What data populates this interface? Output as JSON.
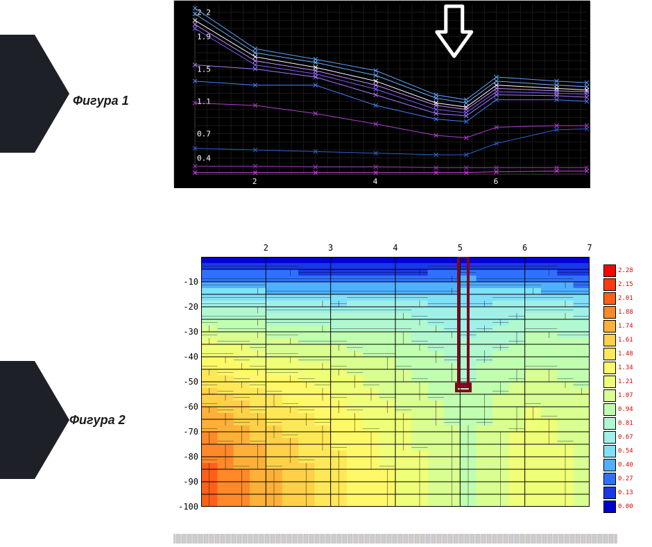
{
  "labels": {
    "fig1": "Фигура 1",
    "fig2": "Фигура 2"
  },
  "fig1": {
    "type": "line",
    "background_color": "#000000",
    "grid_color": "#1a1a1a",
    "axis_color": "#404040",
    "text_color": "#ffffff",
    "tick_fontsize": 11,
    "xlim": [
      1,
      7.5
    ],
    "ylim": [
      0.2,
      2.3
    ],
    "xticks": [
      2,
      4,
      6
    ],
    "yticks": [
      0.4,
      0.7,
      1.1,
      1.5,
      1.9,
      2.2
    ],
    "arrow": {
      "x": 5.3,
      "color": "#ffffff",
      "stroke_width": 5
    },
    "series": [
      {
        "color": "#60a0ff",
        "width": 1,
        "pts": [
          [
            1,
            2.25
          ],
          [
            2,
            1.75
          ],
          [
            3,
            1.62
          ],
          [
            4,
            1.48
          ],
          [
            5,
            1.18
          ],
          [
            5.5,
            1.12
          ],
          [
            6,
            1.4
          ],
          [
            7,
            1.35
          ],
          [
            7.5,
            1.33
          ]
        ]
      },
      {
        "color": "#70b0ff",
        "width": 1,
        "pts": [
          [
            1,
            2.18
          ],
          [
            2,
            1.7
          ],
          [
            3,
            1.58
          ],
          [
            4,
            1.42
          ],
          [
            5,
            1.14
          ],
          [
            5.5,
            1.08
          ],
          [
            6,
            1.35
          ],
          [
            7,
            1.3
          ],
          [
            7.5,
            1.28
          ]
        ]
      },
      {
        "color": "#ffffff",
        "width": 1,
        "pts": [
          [
            1,
            2.1
          ],
          [
            2,
            1.65
          ],
          [
            3,
            1.52
          ],
          [
            4,
            1.35
          ],
          [
            5,
            1.08
          ],
          [
            5.5,
            1.03
          ],
          [
            6,
            1.3
          ],
          [
            7,
            1.26
          ],
          [
            7.5,
            1.24
          ]
        ]
      },
      {
        "color": "#c890ff",
        "width": 1,
        "pts": [
          [
            1,
            2.05
          ],
          [
            2,
            1.6
          ],
          [
            3,
            1.48
          ],
          [
            4,
            1.3
          ],
          [
            5,
            1.05
          ],
          [
            5.5,
            1.0
          ],
          [
            6,
            1.26
          ],
          [
            7,
            1.23
          ],
          [
            7.5,
            1.22
          ]
        ]
      },
      {
        "color": "#8060ff",
        "width": 1,
        "pts": [
          [
            1,
            2.0
          ],
          [
            2,
            1.55
          ],
          [
            3,
            1.44
          ],
          [
            4,
            1.25
          ],
          [
            5,
            1.0
          ],
          [
            5.5,
            0.96
          ],
          [
            6,
            1.22
          ],
          [
            7,
            1.2
          ],
          [
            7.5,
            1.19
          ]
        ]
      },
      {
        "color": "#a878ff",
        "width": 1,
        "pts": [
          [
            1,
            1.55
          ],
          [
            2,
            1.5
          ],
          [
            3,
            1.4
          ],
          [
            4,
            1.18
          ],
          [
            5,
            0.95
          ],
          [
            5.5,
            0.92
          ],
          [
            6,
            1.18
          ],
          [
            7,
            1.17
          ],
          [
            7.5,
            1.15
          ]
        ]
      },
      {
        "color": "#4080ff",
        "width": 1,
        "pts": [
          [
            1,
            1.35
          ],
          [
            2,
            1.3
          ],
          [
            3,
            1.3
          ],
          [
            4,
            1.05
          ],
          [
            5,
            0.88
          ],
          [
            5.5,
            0.85
          ],
          [
            6,
            1.12
          ],
          [
            7,
            1.12
          ],
          [
            7.5,
            1.1
          ]
        ]
      },
      {
        "color": "#b040d0",
        "width": 1,
        "pts": [
          [
            1,
            1.08
          ],
          [
            2,
            1.05
          ],
          [
            3,
            0.95
          ],
          [
            4,
            0.82
          ],
          [
            5,
            0.68
          ],
          [
            5.5,
            0.65
          ],
          [
            6,
            0.78
          ],
          [
            7,
            0.8
          ],
          [
            7.5,
            0.8
          ]
        ]
      },
      {
        "color": "#3060d0",
        "width": 1,
        "pts": [
          [
            1,
            0.52
          ],
          [
            2,
            0.5
          ],
          [
            3,
            0.48
          ],
          [
            4,
            0.46
          ],
          [
            5,
            0.44
          ],
          [
            5.5,
            0.44
          ],
          [
            6,
            0.58
          ],
          [
            7,
            0.75
          ],
          [
            7.5,
            0.76
          ]
        ]
      },
      {
        "color": "#a030c0",
        "width": 1,
        "pts": [
          [
            1,
            0.3
          ],
          [
            2,
            0.3
          ],
          [
            3,
            0.29
          ],
          [
            4,
            0.29
          ],
          [
            5,
            0.28
          ],
          [
            5.5,
            0.28
          ],
          [
            6,
            0.28
          ],
          [
            7,
            0.28
          ],
          [
            7.5,
            0.28
          ]
        ]
      },
      {
        "color": "#d040e0",
        "width": 1,
        "pts": [
          [
            1,
            0.22
          ],
          [
            2,
            0.22
          ],
          [
            3,
            0.22
          ],
          [
            4,
            0.22
          ],
          [
            5,
            0.22
          ],
          [
            5.5,
            0.22
          ],
          [
            6,
            0.23
          ],
          [
            7,
            0.24
          ],
          [
            7.5,
            0.24
          ]
        ]
      }
    ]
  },
  "fig2": {
    "type": "heatmap",
    "background_color": "#ffffff",
    "grid_color": "#000000",
    "text_color": "#000000",
    "tick_fontsize": 12,
    "xlim": [
      1,
      7
    ],
    "ylim": [
      -100,
      0
    ],
    "xticks": [
      2,
      3,
      4,
      5,
      6,
      7
    ],
    "yticks": [
      -10,
      -20,
      -30,
      -40,
      -50,
      -60,
      -70,
      -80,
      -90,
      -100
    ],
    "y_gridlines": [
      -5,
      -10,
      -15,
      -20,
      -25,
      -30,
      -35,
      -40,
      -45,
      -50,
      -55,
      -60,
      -65,
      -70,
      -75,
      -80,
      -85,
      -90,
      -95,
      -100
    ],
    "marker": {
      "x": 5.05,
      "y_top": 0,
      "y_bot": -52,
      "color": "#7a0820",
      "stroke_width": 4
    },
    "legend": {
      "stops": [
        {
          "v": "2.28",
          "c": "#ff0000"
        },
        {
          "v": "2.15",
          "c": "#ff3810"
        },
        {
          "v": "2.01",
          "c": "#ff6018"
        },
        {
          "v": "1.88",
          "c": "#ff8828"
        },
        {
          "v": "1.74",
          "c": "#ffb038"
        },
        {
          "v": "1.61",
          "c": "#ffd048"
        },
        {
          "v": "1.48",
          "c": "#ffe858"
        },
        {
          "v": "1.34",
          "c": "#fff868"
        },
        {
          "v": "1.21",
          "c": "#f0ff78"
        },
        {
          "v": "1.07",
          "c": "#d8ff90"
        },
        {
          "v": "0.94",
          "c": "#c0ffb0"
        },
        {
          "v": "0.81",
          "c": "#b0f8d0"
        },
        {
          "v": "0.67",
          "c": "#a0f0e8"
        },
        {
          "v": "0.54",
          "c": "#80e0f8"
        },
        {
          "v": "0.40",
          "c": "#50b0ff"
        },
        {
          "v": "0.27",
          "c": "#3070ff"
        },
        {
          "v": "0.13",
          "c": "#1838e8"
        },
        {
          "v": "0.00",
          "c": "#0000d0"
        }
      ]
    },
    "grid_nx": 7,
    "grid_ny": 11,
    "values": [
      [
        0.1,
        0.1,
        0.1,
        0.1,
        0.1,
        0.1,
        0.1
      ],
      [
        0.45,
        0.45,
        0.42,
        0.4,
        0.5,
        0.48,
        0.35
      ],
      [
        0.85,
        0.8,
        0.75,
        0.78,
        0.67,
        0.8,
        0.75
      ],
      [
        1.15,
        1.05,
        1.0,
        0.95,
        0.8,
        0.95,
        0.92
      ],
      [
        1.4,
        1.25,
        1.15,
        1.05,
        0.88,
        1.05,
        1.0
      ],
      [
        1.6,
        1.42,
        1.28,
        1.12,
        0.95,
        1.12,
        1.05
      ],
      [
        1.78,
        1.55,
        1.38,
        1.2,
        1.0,
        1.22,
        1.1
      ],
      [
        1.9,
        1.65,
        1.45,
        1.25,
        1.02,
        1.28,
        1.12
      ],
      [
        2.0,
        1.72,
        1.5,
        1.28,
        1.04,
        1.3,
        1.14
      ],
      [
        2.05,
        1.76,
        1.52,
        1.3,
        1.05,
        1.3,
        1.14
      ],
      [
        2.08,
        1.78,
        1.53,
        1.3,
        1.05,
        1.3,
        1.14
      ]
    ]
  }
}
